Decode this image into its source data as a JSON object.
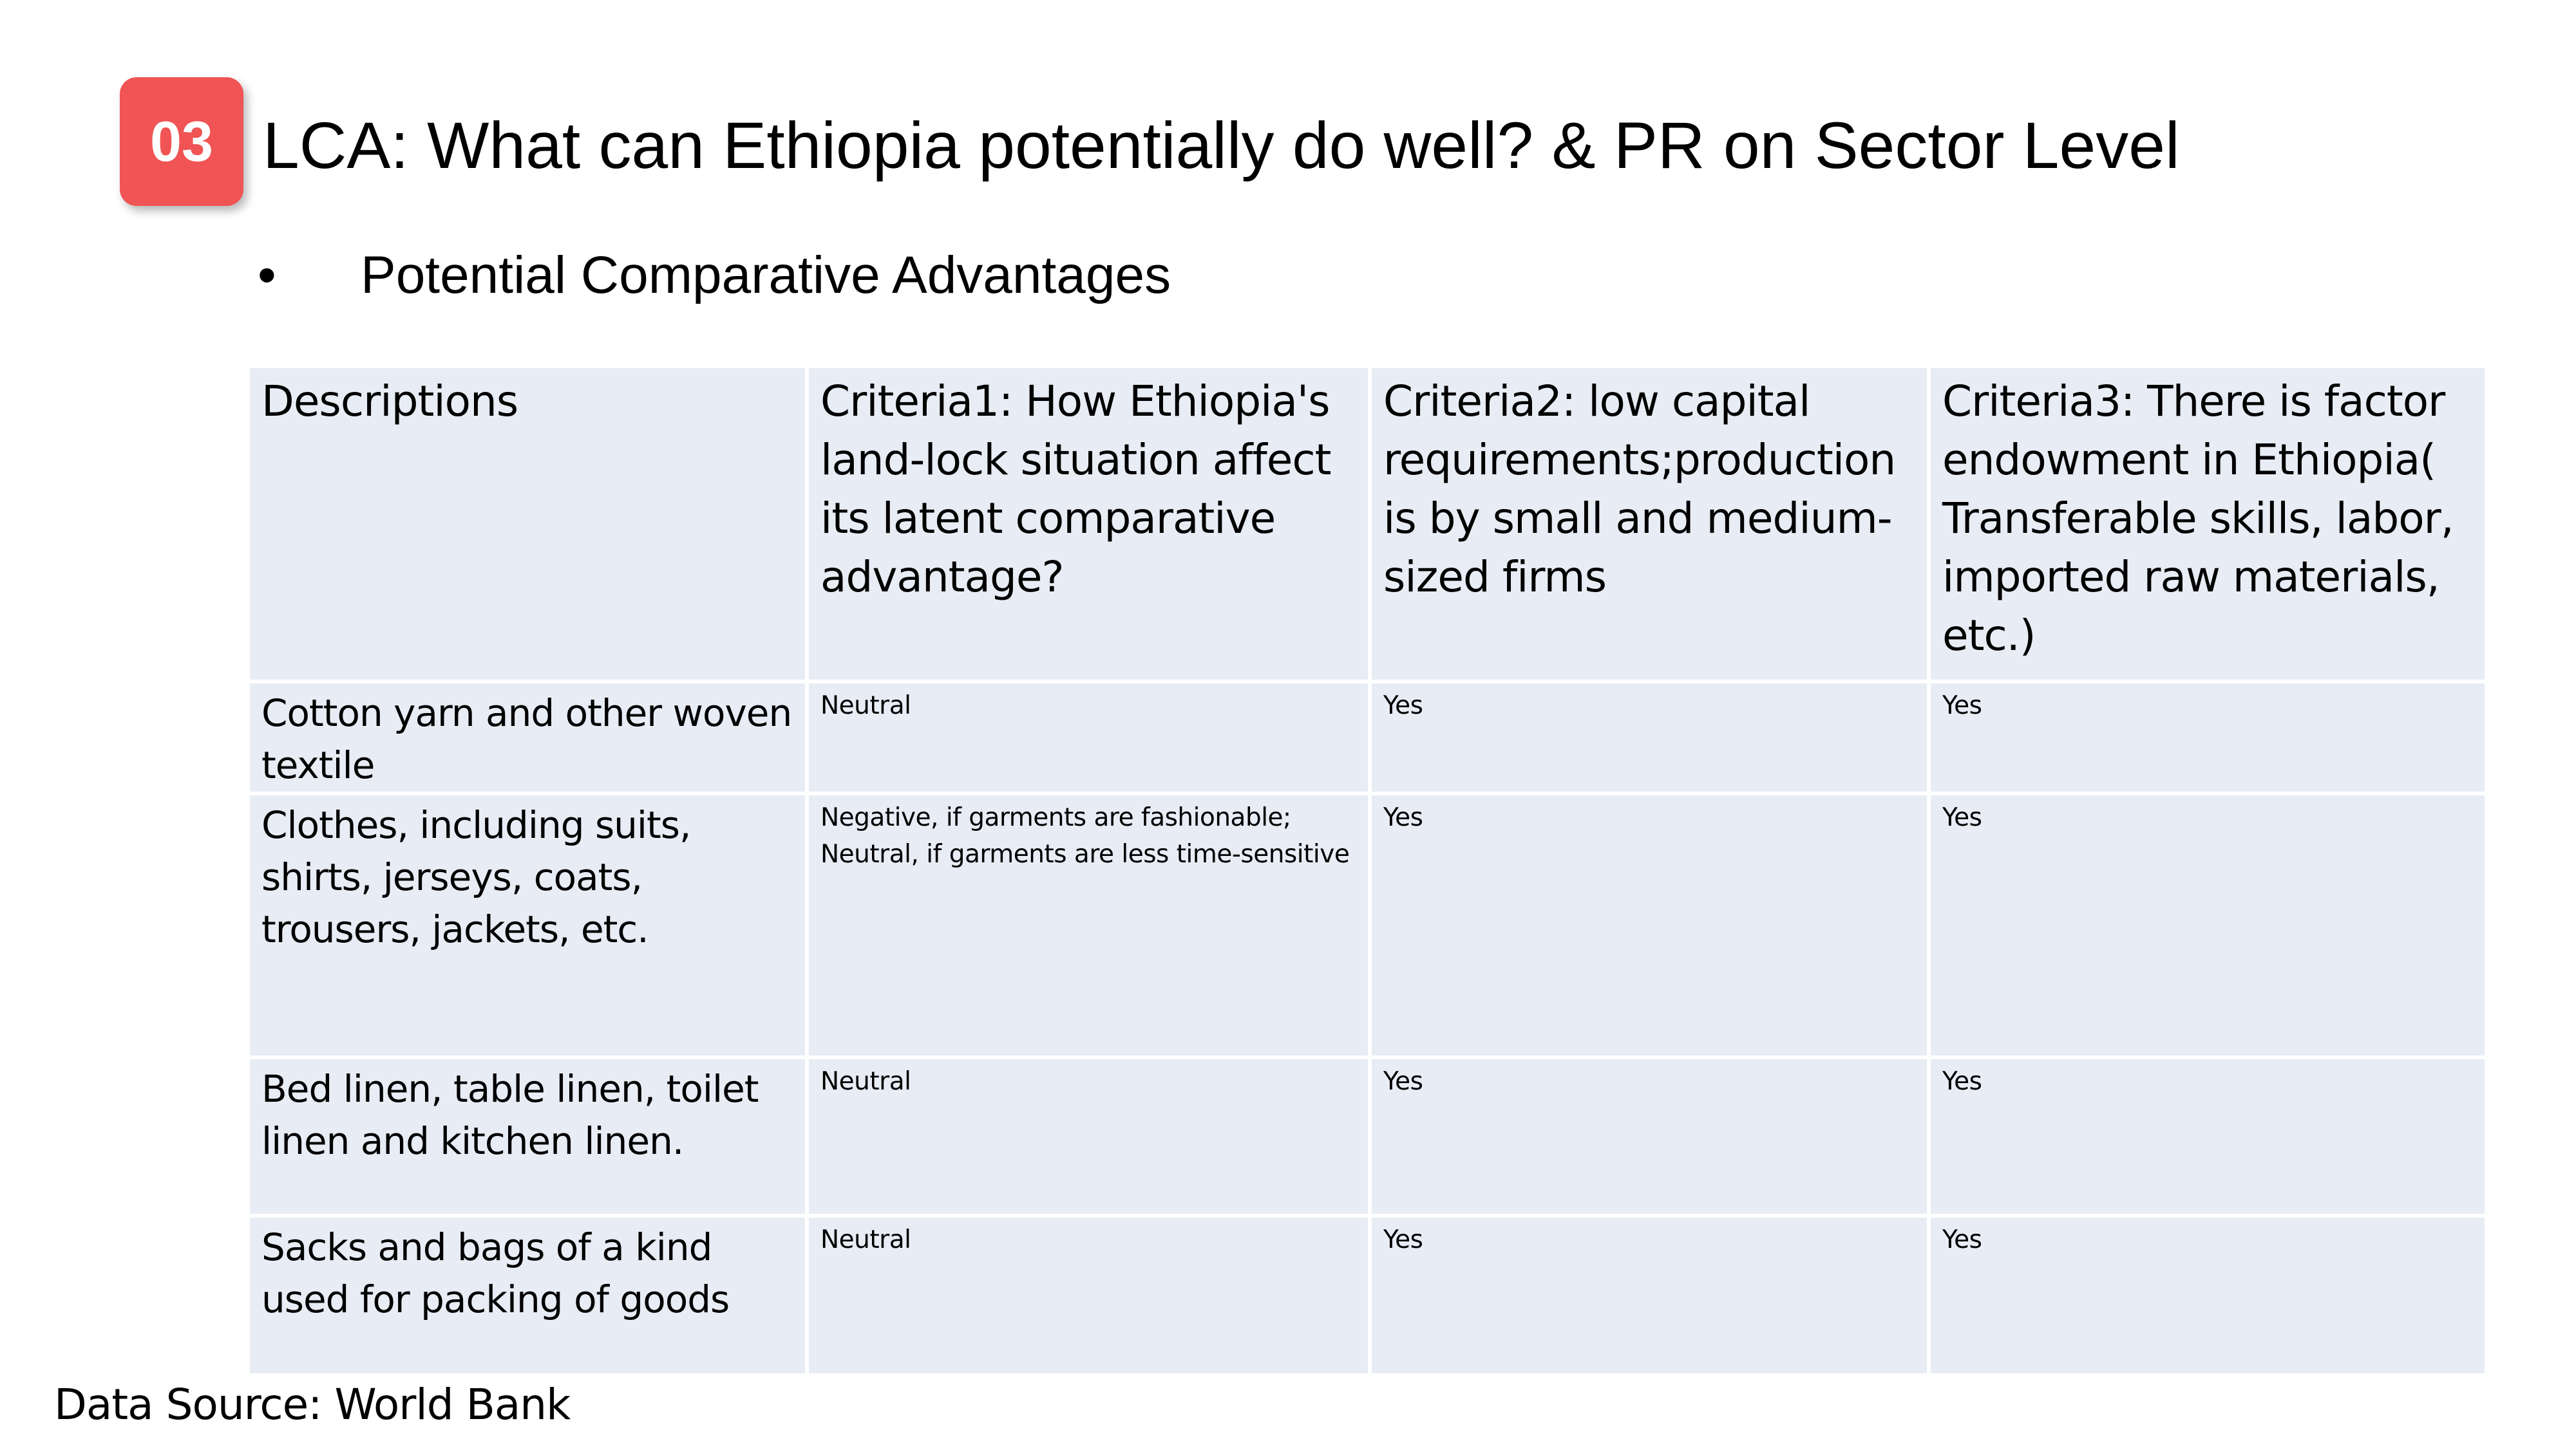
{
  "slide": {
    "badge": "03",
    "title": "LCA: What can Ethiopia potentially do well? & PR on Sector Level",
    "bullet_marker": "•",
    "bullet": "Potential Comparative Advantages",
    "source": "Data Source: World Bank"
  },
  "table": {
    "headers": [
      "Descriptions",
      "Criteria1: How Ethiopia's land-lock situation affect its latent comparative advantage?",
      "Criteria2: low capital requirements;production is by small and medium-sized firms",
      "Criteria3: There is factor endowment in Ethiopia( Transferable skills, labor, imported raw materials, etc.)"
    ],
    "rows": [
      {
        "description": "Cotton yarn and other woven textile",
        "criteria1": "Neutral",
        "criteria2": "Yes",
        "criteria3": "Yes"
      },
      {
        "description": "Clothes, including suits, shirts, jerseys, coats, trousers, jackets, etc.",
        "criteria1_line1": "Negative, if garments are fashionable;",
        "criteria1_line2": "Neutral, if garments are less time-sensitive",
        "criteria2": "Yes",
        "criteria3": "Yes"
      },
      {
        "description": "Bed linen, table linen, toilet linen and kitchen linen.",
        "criteria1": "Neutral",
        "criteria2": "Yes",
        "criteria3": "Yes"
      },
      {
        "description": "Sacks and bags of a kind used for packing of goods",
        "criteria1": "Neutral",
        "criteria2": "Yes",
        "criteria3": "Yes"
      }
    ]
  }
}
